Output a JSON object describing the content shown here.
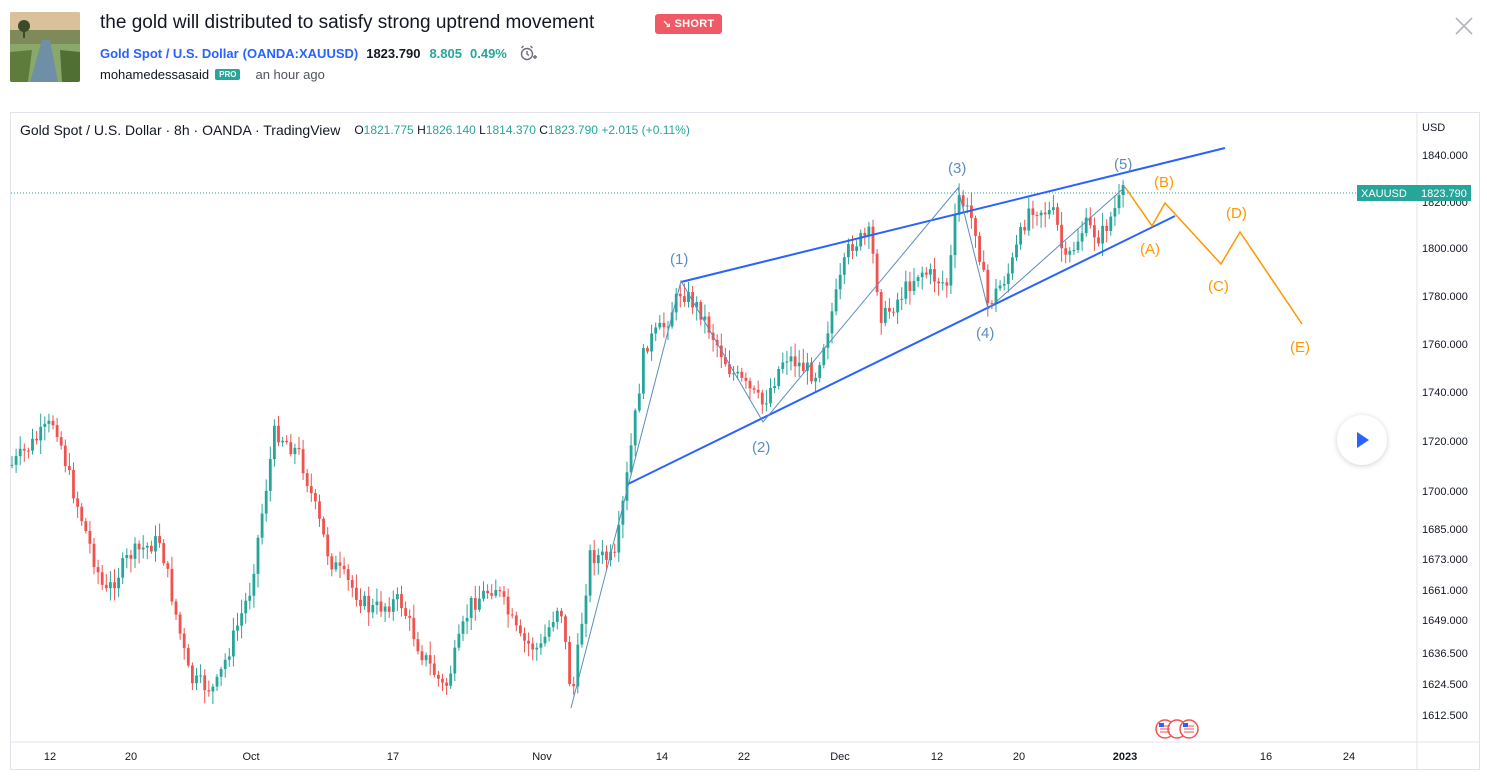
{
  "idea": {
    "title": "the gold will distributed to satisfy strong uptrend movement",
    "direction": "SHORT",
    "direction_arrow": "↘"
  },
  "symbol": {
    "name": "Gold Spot / U.S. Dollar",
    "code": "(OANDA:XAUUSD)",
    "price": "1823.790",
    "change": "8.805",
    "change_pct": "0.49%"
  },
  "author": {
    "name": "mohamedessasaid",
    "badge": "PRO",
    "time": "an hour ago"
  },
  "legend": {
    "title": "Gold Spot / U.S. Dollar · 8h · OANDA · TradingView",
    "open_label": "O",
    "open": "1821.775",
    "high_label": "H",
    "high": "1826.140",
    "low_label": "L",
    "low": "1814.370",
    "close_label": "C",
    "close": "1823.790",
    "change": "+2.015 (+0.11%)"
  },
  "price_axis": {
    "currency": "USD",
    "ticks": [
      "1840.000",
      "1820.000",
      "1800.000",
      "1780.000",
      "1760.000",
      "1740.000",
      "1720.000",
      "1700.000",
      "1685.000",
      "1673.000",
      "1661.000",
      "1649.000",
      "1636.500",
      "1624.500",
      "1612.500"
    ],
    "last_label": "XAUUSD",
    "last_value": "1823.790"
  },
  "time_axis": {
    "ticks": [
      "12",
      "20",
      "Oct",
      "17",
      "Nov",
      "14",
      "22",
      "Dec",
      "12",
      "20",
      "2023",
      "16",
      "24"
    ]
  },
  "annotations": {
    "waves_blue": [
      "(1)",
      "(2)",
      "(3)",
      "(4)",
      "(5)"
    ],
    "waves_orange": [
      "(A)",
      "(B)",
      "(C)",
      "(D)",
      "(E)"
    ]
  },
  "colors": {
    "up": "#26a69a",
    "down": "#ef5350",
    "trendline": "#2962ff",
    "wave_blue": "#5b8dbf",
    "wave_orange": "#ff9800",
    "short_badge": "#f05a64"
  },
  "chart_data": {
    "type": "candlestick",
    "symbol": "XAUUSD",
    "timeframe": "8h",
    "price_range_visible": [
      1605,
      1850
    ],
    "last_price": 1823.79,
    "wave_count": [
      {
        "label": "(1)",
        "price": 1786
      },
      {
        "label": "(2)",
        "price": 1727
      },
      {
        "label": "(3)",
        "price": 1826
      },
      {
        "label": "(4)",
        "price": 1773
      },
      {
        "label": "(5)",
        "price": 1826
      }
    ],
    "projection": [
      "(A)",
      "(B)",
      "(C)",
      "(D)",
      "(E)"
    ]
  }
}
